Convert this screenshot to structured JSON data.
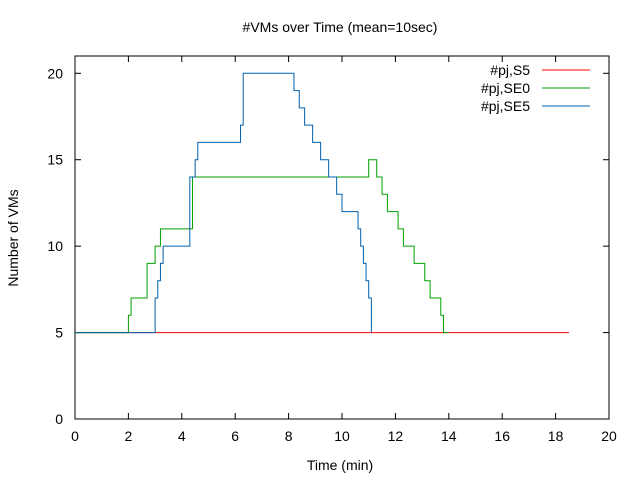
{
  "chart_data": {
    "type": "line",
    "title": "#VMs over Time (mean=10sec)",
    "xlabel": "Time (min)",
    "ylabel": "Number of VMs",
    "xlim": [
      0,
      20
    ],
    "ylim": [
      0,
      21
    ],
    "xticks": [
      0,
      2,
      4,
      6,
      8,
      10,
      12,
      14,
      16,
      18,
      20
    ],
    "yticks": [
      0,
      5,
      10,
      15,
      20
    ],
    "grid": false,
    "legend_position": "top-right",
    "series": [
      {
        "name": "#pj,S5",
        "color": "#ff0000",
        "step": true,
        "x": [
          0,
          18.5
        ],
        "y": [
          5,
          5
        ]
      },
      {
        "name": "#pj,SE0",
        "color": "#00a000",
        "step": true,
        "x": [
          0,
          2.0,
          2.1,
          2.2,
          2.7,
          3.0,
          3.2,
          4.3,
          4.4,
          11.0,
          11.3,
          11.5,
          11.7,
          12.1,
          12.3,
          12.7,
          13.1,
          13.3,
          13.7,
          13.8,
          14.0
        ],
        "y": [
          5,
          6,
          7,
          7,
          9,
          10,
          11,
          11,
          14,
          15,
          14,
          13,
          12,
          11,
          10,
          9,
          8,
          7,
          6,
          5,
          5
        ]
      },
      {
        "name": "#pj,SE5",
        "color": "#0060ad",
        "step": true,
        "x": [
          0,
          3.0,
          3.1,
          3.2,
          3.3,
          3.5,
          4.3,
          4.5,
          4.6,
          6.2,
          6.3,
          8.2,
          8.4,
          8.6,
          8.9,
          9.2,
          9.5,
          9.8,
          10.0,
          10.6,
          10.7,
          10.8,
          10.9,
          11.0,
          11.1
        ],
        "y": [
          5,
          7,
          8,
          9,
          10,
          10,
          14,
          15,
          16,
          17,
          20,
          19,
          18,
          17,
          16,
          15,
          14,
          13,
          12,
          11,
          10,
          9,
          8,
          7,
          5
        ]
      }
    ]
  }
}
